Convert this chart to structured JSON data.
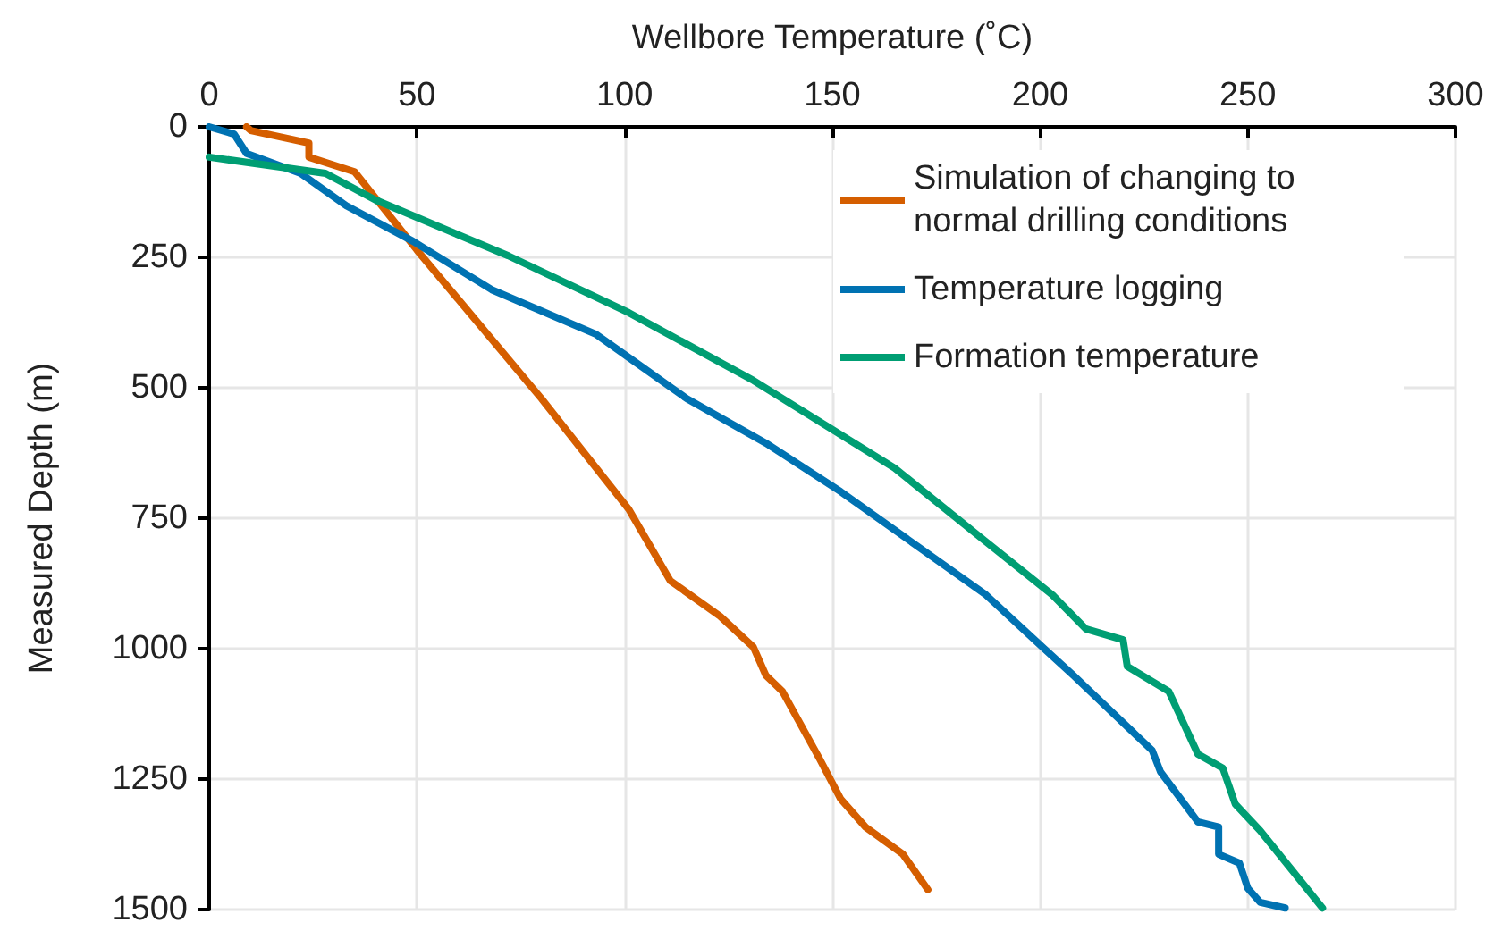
{
  "chart_data": {
    "type": "line",
    "xlabel": "Wellbore Temperature (˚C)",
    "ylabel": "Measured Depth (m)",
    "xlim": [
      0,
      300
    ],
    "xticks": [
      0,
      50,
      100,
      150,
      200,
      250,
      300
    ],
    "ylim": [
      1500,
      0
    ],
    "yticks": [
      0,
      250,
      500,
      750,
      1000,
      1250,
      1500
    ],
    "grid": true,
    "legend": "top right",
    "marker": "none",
    "line_style": "solid",
    "series": [
      {
        "name": "Simulation of changing to normal drilling conditions",
        "color": "#d55e00",
        "x": [
          9,
          10,
          24,
          24,
          35,
          50,
          80,
          101,
          111,
          123,
          131,
          134,
          138,
          147,
          152,
          158,
          167,
          173
        ],
        "values": [
          0,
          7,
          31,
          58,
          86,
          236,
          521,
          733,
          870,
          938,
          997,
          1051,
          1082,
          1212,
          1288,
          1342,
          1394,
          1462
        ]
      },
      {
        "name": "Temperature logging",
        "color": "#0072b2",
        "x": [
          0,
          6,
          9,
          22,
          33,
          49,
          68,
          93,
          101,
          115,
          134,
          152,
          187,
          201,
          208,
          227,
          229,
          238,
          243,
          243,
          248,
          250,
          253,
          259
        ],
        "values": [
          0,
          14,
          51,
          89,
          151,
          219,
          312,
          397,
          442,
          521,
          606,
          699,
          897,
          1000,
          1051,
          1195,
          1236,
          1332,
          1342,
          1394,
          1411,
          1459,
          1486,
          1497
        ]
      },
      {
        "name": "Formation temperature",
        "color": "#009e73",
        "x": [
          0,
          28,
          40,
          72,
          101,
          131,
          165,
          187,
          203,
          211,
          220,
          221,
          231,
          238,
          244,
          247,
          253,
          268
        ],
        "values": [
          58,
          89,
          140,
          247,
          356,
          486,
          654,
          795,
          897,
          962,
          983,
          1034,
          1082,
          1202,
          1229,
          1298,
          1349,
          1497
        ]
      }
    ]
  }
}
